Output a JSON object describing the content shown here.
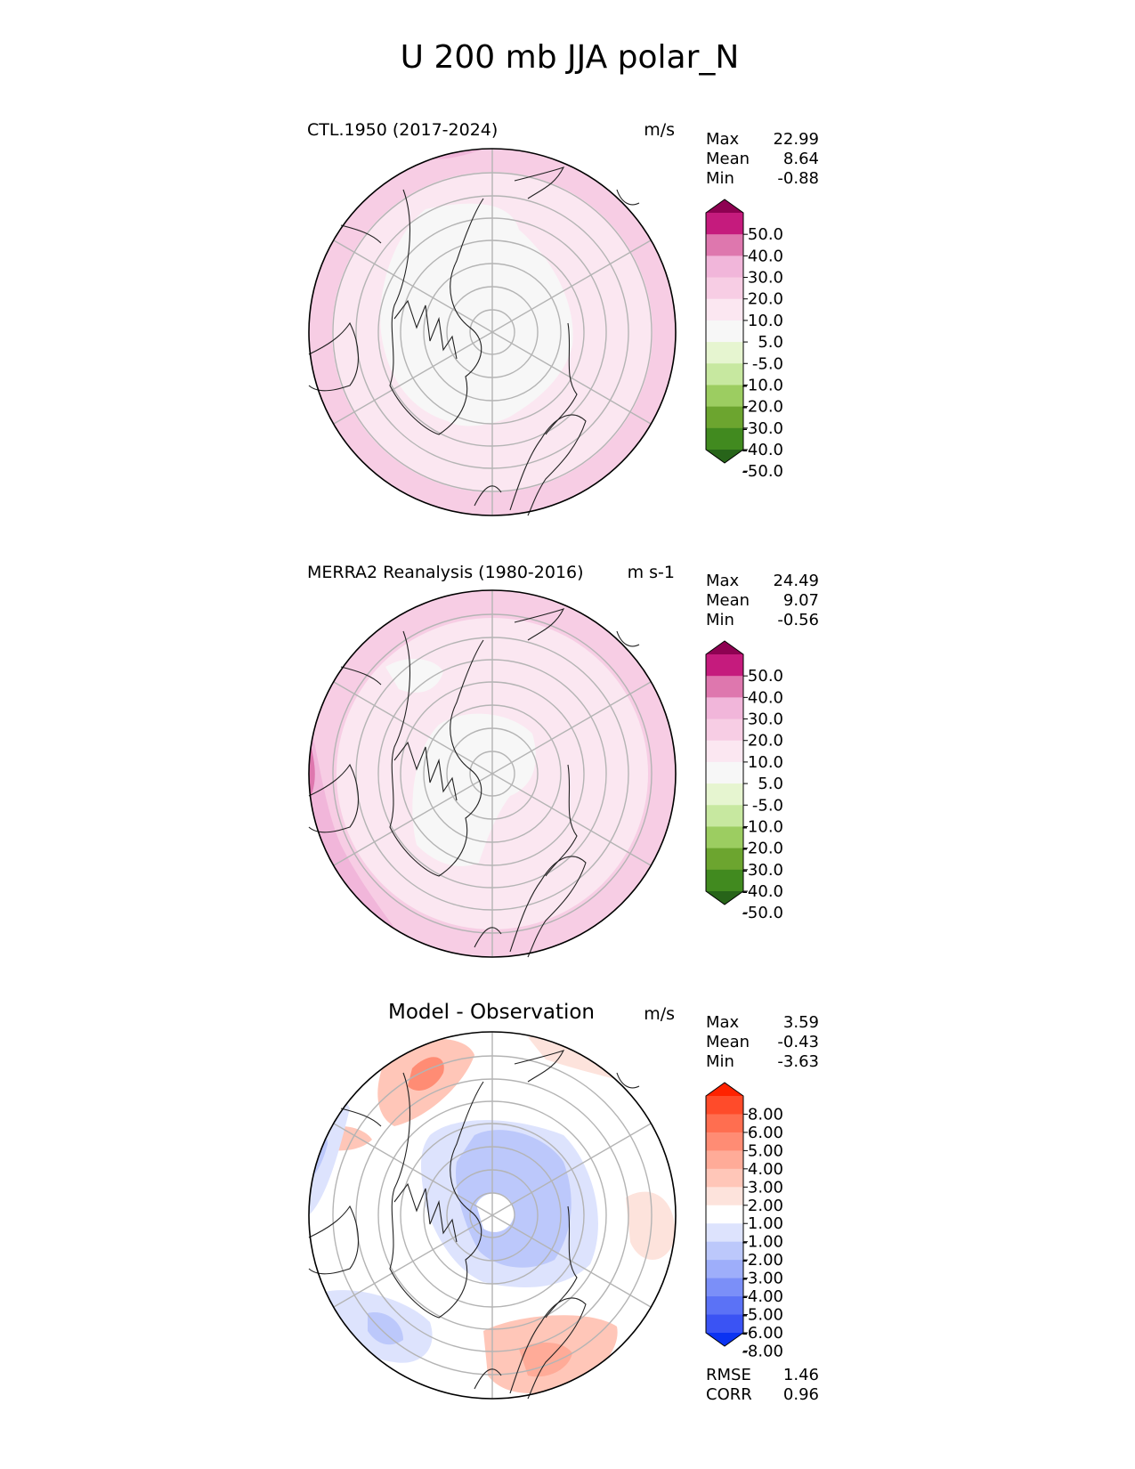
{
  "figure": {
    "title": "U 200 mb JJA polar_N"
  },
  "panels": [
    {
      "id": "model",
      "title": "CTL.1950 (2017-2024)",
      "units": "m/s",
      "stats": [
        {
          "label": "Max",
          "value": "22.99"
        },
        {
          "label": "Mean",
          "value": "8.64"
        },
        {
          "label": "Min",
          "value": "-0.88"
        }
      ],
      "colorbar": {
        "levels": [
          "50.0",
          "40.0",
          "30.0",
          "20.0",
          "10.0",
          "5.0",
          "-5.0",
          "-10.0",
          "-20.0",
          "-30.0",
          "-40.0",
          "-50.0"
        ],
        "colors": [
          "#8e0152",
          "#c51b7d",
          "#de77ae",
          "#f1b6da",
          "#f7cde4",
          "#fbe7f1",
          "#f7f7f7",
          "#e6f5d0",
          "#c7e8a0",
          "#9ccd61",
          "#6ca52f",
          "#418a1f",
          "#276419"
        ]
      }
    },
    {
      "id": "obs",
      "title": "MERRA2 Reanalysis (1980-2016)",
      "units": "m s-1",
      "stats": [
        {
          "label": "Max",
          "value": "24.49"
        },
        {
          "label": "Mean",
          "value": "9.07"
        },
        {
          "label": "Min",
          "value": "-0.56"
        }
      ],
      "colorbar": {
        "levels": [
          "50.0",
          "40.0",
          "30.0",
          "20.0",
          "10.0",
          "5.0",
          "-5.0",
          "-10.0",
          "-20.0",
          "-30.0",
          "-40.0",
          "-50.0"
        ],
        "colors": [
          "#8e0152",
          "#c51b7d",
          "#de77ae",
          "#f1b6da",
          "#f7cde4",
          "#fbe7f1",
          "#f7f7f7",
          "#e6f5d0",
          "#c7e8a0",
          "#9ccd61",
          "#6ca52f",
          "#418a1f",
          "#276419"
        ]
      }
    },
    {
      "id": "diff",
      "title": "Model - Observation",
      "units": "m/s",
      "stats": [
        {
          "label": "Max",
          "value": "3.59"
        },
        {
          "label": "Mean",
          "value": "-0.43"
        },
        {
          "label": "Min",
          "value": "-3.63"
        }
      ],
      "colorbar": {
        "levels": [
          "8.00",
          "6.00",
          "5.00",
          "4.00",
          "3.00",
          "2.00",
          "1.00",
          "-1.00",
          "-2.00",
          "-3.00",
          "-4.00",
          "-5.00",
          "-6.00",
          "-8.00"
        ],
        "colors": [
          "#ff2200",
          "#ff4b2a",
          "#ff6e50",
          "#ff8c74",
          "#ffab98",
          "#ffc6b8",
          "#fde3dc",
          "#ffffff",
          "#dde3fd",
          "#bcc8fb",
          "#9eaefa",
          "#7b8ff8",
          "#5b72f6",
          "#3a53f4",
          "#0b33f2"
        ]
      },
      "metrics": [
        {
          "label": "RMSE",
          "value": "1.46"
        },
        {
          "label": "CORR",
          "value": "0.96"
        }
      ]
    }
  ],
  "chart_data": [
    {
      "type": "heatmap",
      "projection": "north polar stereographic",
      "title": "CTL.1950 (2017-2024)",
      "field": "U 200 mb JJA",
      "units": "m/s",
      "max": 22.99,
      "mean": 8.64,
      "min": -0.88,
      "contour_levels": [
        -50,
        -40,
        -30,
        -20,
        -10,
        -5,
        5,
        10,
        20,
        30,
        40,
        50
      ]
    },
    {
      "type": "heatmap",
      "projection": "north polar stereographic",
      "title": "MERRA2 Reanalysis (1980-2016)",
      "field": "U 200 mb JJA",
      "units": "m s-1",
      "max": 24.49,
      "mean": 9.07,
      "min": -0.56,
      "contour_levels": [
        -50,
        -40,
        -30,
        -20,
        -10,
        -5,
        5,
        10,
        20,
        30,
        40,
        50
      ]
    },
    {
      "type": "heatmap",
      "projection": "north polar stereographic",
      "title": "Model - Observation",
      "units": "m/s",
      "max": 3.59,
      "mean": -0.43,
      "min": -3.63,
      "rmse": 1.46,
      "corr": 0.96,
      "contour_levels": [
        -8,
        -6,
        -5,
        -4,
        -3,
        -2,
        -1,
        1,
        2,
        3,
        4,
        5,
        6,
        8
      ]
    }
  ]
}
